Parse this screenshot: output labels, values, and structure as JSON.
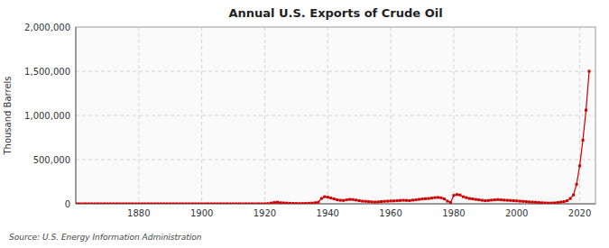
{
  "chart_data": {
    "type": "line",
    "title": "Annual U.S. Exports of Crude Oil",
    "y_label": "Thousand Barrels",
    "annotations": [
      "Source: U.S. Energy Information Administration"
    ],
    "color": "#cc0000",
    "marker": "square",
    "grid": true,
    "xlim": [
      1860,
      2025
    ],
    "ylim": [
      0,
      2000000
    ],
    "xticks": [
      1880,
      1900,
      1920,
      1940,
      1960,
      1980,
      2000,
      2020
    ],
    "yticks": [
      0,
      {
        "value": 500000,
        "label": "500,000"
      },
      {
        "value": 1000000,
        "label": "1,000,000"
      },
      {
        "value": 1500000,
        "label": "1,500,000"
      },
      {
        "value": 2000000,
        "label": "2,000,000"
      }
    ],
    "x": [
      1860,
      1861,
      1862,
      1863,
      1864,
      1865,
      1866,
      1867,
      1868,
      1869,
      1870,
      1871,
      1872,
      1873,
      1874,
      1875,
      1876,
      1877,
      1878,
      1879,
      1880,
      1881,
      1882,
      1883,
      1884,
      1885,
      1886,
      1887,
      1888,
      1889,
      1890,
      1891,
      1892,
      1893,
      1894,
      1895,
      1896,
      1897,
      1898,
      1899,
      1900,
      1901,
      1902,
      1903,
      1904,
      1905,
      1906,
      1907,
      1908,
      1909,
      1910,
      1911,
      1912,
      1913,
      1914,
      1915,
      1916,
      1917,
      1918,
      1919,
      1920,
      1921,
      1922,
      1923,
      1924,
      1925,
      1926,
      1927,
      1928,
      1929,
      1930,
      1931,
      1932,
      1933,
      1934,
      1935,
      1936,
      1937,
      1938,
      1939,
      1940,
      1941,
      1942,
      1943,
      1944,
      1945,
      1946,
      1947,
      1948,
      1949,
      1950,
      1951,
      1952,
      1953,
      1954,
      1955,
      1956,
      1957,
      1958,
      1959,
      1960,
      1961,
      1962,
      1963,
      1964,
      1965,
      1966,
      1967,
      1968,
      1969,
      1970,
      1971,
      1972,
      1973,
      1974,
      1975,
      1976,
      1977,
      1978,
      1979,
      1980,
      1981,
      1982,
      1983,
      1984,
      1985,
      1986,
      1987,
      1988,
      1989,
      1990,
      1991,
      1992,
      1993,
      1994,
      1995,
      1996,
      1997,
      1998,
      1999,
      2000,
      2001,
      2002,
      2003,
      2004,
      2005,
      2006,
      2007,
      2008,
      2009,
      2010,
      2011,
      2012,
      2013,
      2014,
      2015,
      2016,
      2017,
      2018,
      2019,
      2020,
      2021,
      2022,
      2023
    ],
    "values": [
      500,
      500,
      500,
      500,
      500,
      500,
      500,
      500,
      500,
      500,
      500,
      500,
      500,
      500,
      500,
      500,
      500,
      500,
      500,
      500,
      500,
      500,
      500,
      500,
      500,
      500,
      500,
      500,
      500,
      500,
      500,
      500,
      500,
      500,
      500,
      500,
      500,
      500,
      500,
      500,
      500,
      500,
      500,
      500,
      500,
      500,
      500,
      500,
      500,
      500,
      500,
      500,
      500,
      500,
      500,
      500,
      500,
      500,
      500,
      500,
      500,
      3000,
      8000,
      15000,
      18000,
      12000,
      10000,
      8000,
      6000,
      5000,
      4000,
      3000,
      4000,
      5000,
      6000,
      8000,
      12000,
      18000,
      60000,
      80000,
      75000,
      65000,
      55000,
      45000,
      40000,
      38000,
      45000,
      50000,
      48000,
      42000,
      35000,
      30000,
      28000,
      25000,
      22000,
      20000,
      22000,
      25000,
      28000,
      30000,
      32000,
      33000,
      35000,
      38000,
      40000,
      38000,
      36000,
      42000,
      45000,
      50000,
      55000,
      58000,
      60000,
      65000,
      70000,
      72000,
      68000,
      55000,
      30000,
      15000,
      95000,
      105000,
      100000,
      80000,
      70000,
      60000,
      55000,
      50000,
      45000,
      40000,
      35000,
      38000,
      42000,
      45000,
      48000,
      45000,
      42000,
      40000,
      38000,
      35000,
      33000,
      30000,
      28000,
      25000,
      22000,
      20000,
      18000,
      15000,
      12000,
      10000,
      8000,
      9000,
      10000,
      15000,
      20000,
      25000,
      35000,
      60000,
      100000,
      220000,
      430000,
      720000,
      1060000,
      1500000
    ]
  }
}
